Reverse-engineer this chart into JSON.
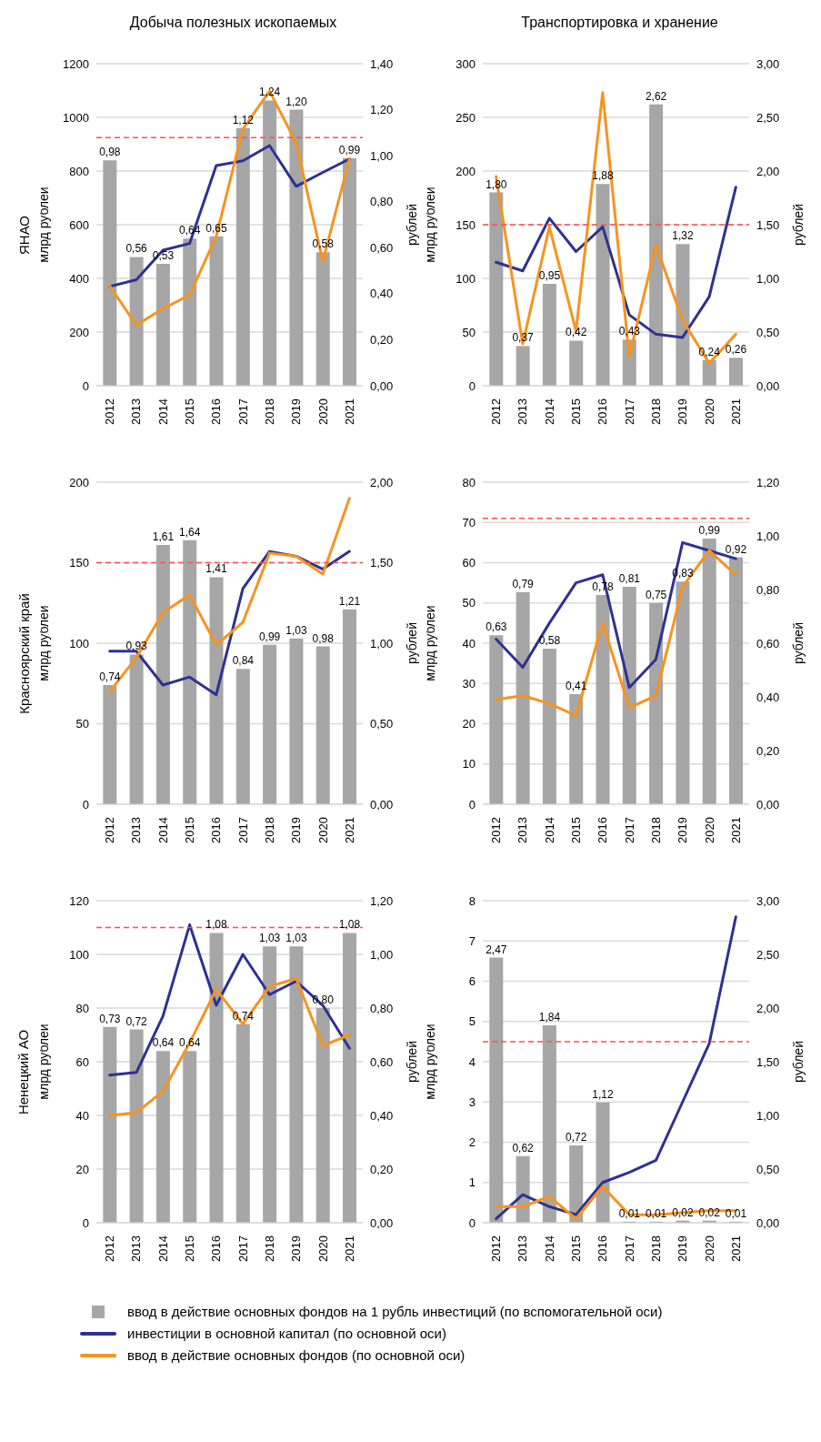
{
  "chart_data": [
    {
      "type": "bar",
      "title": "Добыча полезных ископаемых",
      "subtitle": "ЯНАО",
      "ylabel": "млрд рублей",
      "y2label": "рублей",
      "categories": [
        "2012",
        "2013",
        "2014",
        "2015",
        "2016",
        "2017",
        "2018",
        "2019",
        "2020",
        "2021"
      ],
      "series": [
        {
          "type": "bar",
          "axis": "y2",
          "color": "#a6a6a6",
          "values": [
            0.98,
            0.56,
            0.53,
            0.64,
            0.65,
            1.12,
            1.24,
            1.2,
            0.58,
            0.99
          ],
          "value_labels": [
            "0,98",
            "0,56",
            "0,53",
            "0,64",
            "0,65",
            "1,12",
            "1,24",
            "1,20",
            "0,58",
            "0,99"
          ]
        },
        {
          "type": "line",
          "color": "#2e3192",
          "values": [
            370,
            395,
            505,
            530,
            820,
            838,
            895,
            743,
            795,
            845
          ]
        },
        {
          "type": "line",
          "color": "#f7931e",
          "values": [
            372,
            226,
            287,
            338,
            557,
            956,
            1098,
            905,
            463,
            845
          ]
        }
      ],
      "ylim": [
        0,
        1200
      ],
      "yticks": [
        0,
        200,
        400,
        600,
        800,
        1000,
        1200
      ],
      "y2lim": [
        0,
        1.4
      ],
      "y2ticks": [
        {
          "value": 0,
          "label": "0,00"
        },
        {
          "value": 0.2,
          "label": "0,20"
        },
        {
          "value": 0.4,
          "label": "0,40"
        },
        {
          "value": 0.6,
          "label": "0,60"
        },
        {
          "value": 0.8,
          "label": "0,80"
        },
        {
          "value": 1,
          "label": "1,00"
        },
        {
          "value": 1.2,
          "label": "1,20"
        },
        {
          "value": 1.4,
          "label": "1,40"
        }
      ],
      "ref_lines": [
        {
          "axis": "y",
          "value": 925,
          "color": "#ff4d4d",
          "line_style": "dashed"
        }
      ],
      "grid": "y",
      "marker": "none",
      "line_style": "solid"
    },
    {
      "type": "bar",
      "title": "Транспортировка и хранение",
      "ylabel": "млрд рублей",
      "y2label": "рублей",
      "categories": [
        "2012",
        "2013",
        "2014",
        "2015",
        "2016",
        "2017",
        "2018",
        "2019",
        "2020",
        "2021"
      ],
      "series": [
        {
          "type": "bar",
          "axis": "y2",
          "color": "#a6a6a6",
          "values": [
            1.8,
            0.37,
            0.95,
            0.42,
            1.88,
            0.43,
            2.62,
            1.32,
            0.24,
            0.26
          ],
          "value_labels": [
            "1,80",
            "0,37",
            "0,95",
            "0,42",
            "1,88",
            "0,43",
            "2,62",
            "1,32",
            "0,24",
            "0,26"
          ]
        },
        {
          "type": "line",
          "color": "#2e3192",
          "values": [
            115,
            107,
            156,
            125,
            148,
            66,
            48,
            45,
            83,
            185
          ]
        },
        {
          "type": "line",
          "color": "#f7931e",
          "values": [
            195,
            39,
            148,
            51,
            273,
            27,
            131,
            61,
            21,
            48
          ]
        }
      ],
      "ylim": [
        0,
        300
      ],
      "yticks": [
        0,
        50,
        100,
        150,
        200,
        250,
        300
      ],
      "y2lim": [
        0,
        3
      ],
      "y2ticks": [
        {
          "value": 0,
          "label": "0,00"
        },
        {
          "value": 0.5,
          "label": "0,50"
        },
        {
          "value": 1,
          "label": "1,00"
        },
        {
          "value": 1.5,
          "label": "1,50"
        },
        {
          "value": 2,
          "label": "2,00"
        },
        {
          "value": 2.5,
          "label": "2,50"
        },
        {
          "value": 3,
          "label": "3,00"
        }
      ],
      "ref_lines": [
        {
          "axis": "y",
          "value": 150,
          "color": "#ff4d4d",
          "line_style": "dashed"
        }
      ],
      "grid": "y",
      "marker": "none",
      "line_style": "solid"
    },
    {
      "type": "bar",
      "subtitle": "Красноярский край",
      "ylabel": "млрд рублей",
      "y2label": "рублей",
      "categories": [
        "2012",
        "2013",
        "2014",
        "2015",
        "2016",
        "2017",
        "2018",
        "2019",
        "2020",
        "2021"
      ],
      "series": [
        {
          "type": "bar",
          "axis": "y2",
          "color": "#a6a6a6",
          "values": [
            0.74,
            0.93,
            1.61,
            1.64,
            1.41,
            0.84,
            0.99,
            1.03,
            0.98,
            1.21
          ],
          "value_labels": [
            "0,74",
            "0,93",
            "1,61",
            "1,64",
            "1,41",
            "0,84",
            "0,99",
            "1,03",
            "0,98",
            "1,21"
          ]
        },
        {
          "type": "line",
          "color": "#2e3192",
          "values": [
            95,
            95,
            74,
            79,
            68,
            134,
            157,
            154,
            146,
            157
          ]
        },
        {
          "type": "line",
          "color": "#f7931e",
          "values": [
            70,
            91,
            119,
            130,
            99,
            113,
            156,
            154,
            143,
            190
          ]
        }
      ],
      "ylim": [
        0,
        200
      ],
      "yticks": [
        0,
        50,
        100,
        150,
        200
      ],
      "y2lim": [
        0,
        2
      ],
      "y2ticks": [
        {
          "value": 0,
          "label": "0,00"
        },
        {
          "value": 0.5,
          "label": "0,50"
        },
        {
          "value": 1,
          "label": "1,00"
        },
        {
          "value": 1.5,
          "label": "1,50"
        },
        {
          "value": 2,
          "label": "2,00"
        }
      ],
      "ref_lines": [
        {
          "axis": "y",
          "value": 150,
          "color": "#ff4d4d",
          "line_style": "dashed"
        }
      ],
      "grid": "y",
      "marker": "none",
      "line_style": "solid"
    },
    {
      "type": "bar",
      "ylabel": "млрд рублей",
      "y2label": "рублей",
      "categories": [
        "2012",
        "2013",
        "2014",
        "2015",
        "2016",
        "2017",
        "2018",
        "2019",
        "2020",
        "2021"
      ],
      "series": [
        {
          "type": "bar",
          "axis": "y2",
          "color": "#a6a6a6",
          "values": [
            0.63,
            0.79,
            0.58,
            0.41,
            0.78,
            0.81,
            0.75,
            0.83,
            0.99,
            0.92
          ],
          "value_labels": [
            "0,63",
            "0,79",
            "0,58",
            "0,41",
            "0,78",
            "0,81",
            "0,75",
            "0,83",
            "0,99",
            "0,92"
          ]
        },
        {
          "type": "line",
          "color": "#2e3192",
          "values": [
            41,
            34,
            45,
            55,
            57,
            29,
            36,
            65,
            63,
            61
          ]
        },
        {
          "type": "line",
          "color": "#f7931e",
          "values": [
            26,
            27,
            25,
            22,
            45,
            24,
            27,
            54,
            63,
            57
          ]
        }
      ],
      "ylim": [
        0,
        80
      ],
      "yticks": [
        0,
        10,
        20,
        30,
        40,
        50,
        60,
        70,
        80
      ],
      "y2lim": [
        0,
        1.2
      ],
      "y2ticks": [
        {
          "value": 0,
          "label": "0,00"
        },
        {
          "value": 0.2,
          "label": "0,20"
        },
        {
          "value": 0.4,
          "label": "0,40"
        },
        {
          "value": 0.6,
          "label": "0,60"
        },
        {
          "value": 0.8,
          "label": "0,80"
        },
        {
          "value": 1,
          "label": "1,00"
        },
        {
          "value": 1.2,
          "label": "1,20"
        }
      ],
      "ref_lines": [
        {
          "axis": "y",
          "value": 71,
          "color": "#ff4d4d",
          "line_style": "dashed"
        }
      ],
      "grid": "y",
      "marker": "none",
      "line_style": "solid"
    },
    {
      "type": "bar",
      "subtitle": "Ненецкий АО",
      "ylabel": "млрд рублей",
      "y2label": "рублей",
      "categories": [
        "2012",
        "2013",
        "2014",
        "2015",
        "2016",
        "2017",
        "2018",
        "2019",
        "2020",
        "2021"
      ],
      "series": [
        {
          "type": "bar",
          "axis": "y2",
          "name": "ввод в действие основных фондов на 1 рубль инвестиций (по вспомогательной оси)",
          "color": "#a6a6a6",
          "values": [
            0.73,
            0.72,
            0.64,
            0.64,
            1.08,
            0.74,
            1.03,
            1.03,
            0.8,
            1.08
          ],
          "value_labels": [
            "0,73",
            "0,72",
            "0,64",
            "0,64",
            "1,08",
            "0,74",
            "1,03",
            "1,03",
            "0,80",
            "1,08"
          ]
        },
        {
          "type": "line",
          "name": "инвестиции в основной капитал (по основной оси)",
          "color": "#2e3192",
          "values": [
            55,
            56,
            77,
            111,
            81,
            100,
            85,
            90,
            81,
            65
          ]
        },
        {
          "type": "line",
          "name": "ввод в действие основных фондов (по основной оси)",
          "color": "#f7931e",
          "values": [
            40,
            41,
            49,
            67,
            87,
            74,
            88,
            91,
            66,
            70
          ]
        }
      ],
      "ylim": [
        0,
        120
      ],
      "yticks": [
        0,
        20,
        40,
        60,
        80,
        100,
        120
      ],
      "y2lim": [
        0,
        1.2
      ],
      "y2ticks": [
        {
          "value": 0,
          "label": "0,00"
        },
        {
          "value": 0.2,
          "label": "0,20"
        },
        {
          "value": 0.4,
          "label": "0,40"
        },
        {
          "value": 0.6,
          "label": "0,60"
        },
        {
          "value": 0.8,
          "label": "0,80"
        },
        {
          "value": 1,
          "label": "1,00"
        },
        {
          "value": 1.2,
          "label": "1,20"
        }
      ],
      "ref_lines": [
        {
          "axis": "y",
          "value": 110,
          "color": "#ff4d4d",
          "line_style": "dashed"
        }
      ],
      "grid": "y",
      "legend": "bottom",
      "marker": "none",
      "line_style": "solid"
    },
    {
      "type": "bar",
      "ylabel": "млрд рублей",
      "y2label": "рублей",
      "categories": [
        "2012",
        "2013",
        "2014",
        "2015",
        "2016",
        "2017",
        "2018",
        "2019",
        "2020",
        "2021"
      ],
      "series": [
        {
          "type": "bar",
          "axis": "y2",
          "color": "#a6a6a6",
          "values": [
            2.47,
            0.62,
            1.84,
            0.72,
            1.12,
            0.01,
            0.01,
            0.02,
            0.02,
            0.01
          ],
          "value_labels": [
            "2,47",
            "0,62",
            "1,84",
            "0,72",
            "1,12",
            "0,01",
            "0,01",
            "0,02",
            "0,02",
            "0,01"
          ]
        },
        {
          "type": "line",
          "color": "#2e3192",
          "values": [
            0.1,
            0.7,
            0.4,
            0.2,
            1.0,
            1.25,
            1.55,
            3.0,
            4.45,
            7.6
          ]
        },
        {
          "type": "line",
          "color": "#f7931e",
          "values": [
            0.4,
            0.4,
            0.65,
            0.1,
            0.9,
            0.2,
            0.2,
            0.25,
            0.3,
            0.3
          ]
        }
      ],
      "ylim": [
        0,
        8
      ],
      "yticks": [
        0,
        1,
        2,
        3,
        4,
        5,
        6,
        7,
        8
      ],
      "y2lim": [
        0,
        3
      ],
      "y2ticks": [
        {
          "value": 0,
          "label": "0,00"
        },
        {
          "value": 0.5,
          "label": "0,50"
        },
        {
          "value": 1,
          "label": "1,00"
        },
        {
          "value": 1.5,
          "label": "1,50"
        },
        {
          "value": 2,
          "label": "2,00"
        },
        {
          "value": 2.5,
          "label": "2,50"
        },
        {
          "value": 3,
          "label": "3,00"
        }
      ],
      "ref_lines": [
        {
          "axis": "y",
          "value": 4.5,
          "color": "#ff4d4d",
          "line_style": "dashed"
        }
      ],
      "grid": "y",
      "marker": "none",
      "line_style": "solid"
    }
  ]
}
